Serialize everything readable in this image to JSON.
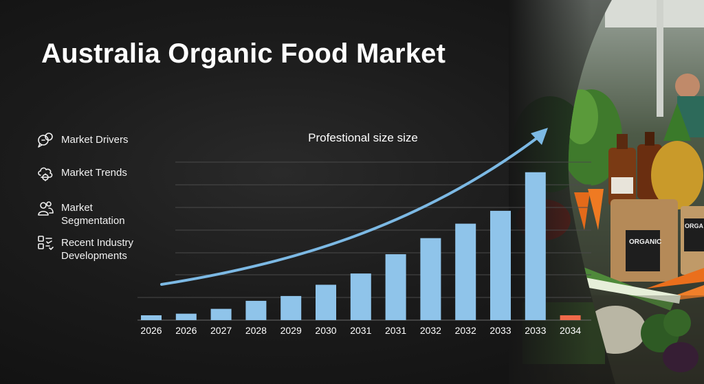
{
  "title": "Australia Organic Food Market",
  "menu": {
    "items": [
      {
        "label": "Market Drivers",
        "icon": "chat-bubbles-icon"
      },
      {
        "label": "Market Trends",
        "icon": "gear-cloud-icon"
      },
      {
        "label": "Market Segmentation",
        "icon": "people-icon"
      },
      {
        "label": "Recent Industry Developments",
        "icon": "checklist-icon"
      }
    ]
  },
  "chart_data": {
    "type": "bar",
    "title": "Profestional size size",
    "xlabel": "",
    "ylabel": "",
    "categories": [
      "2026",
      "2026",
      "2027",
      "2028",
      "2029",
      "2030",
      "2031",
      "2031",
      "2032",
      "2032",
      "2033",
      "2033",
      "2034"
    ],
    "values": [
      3,
      4,
      7,
      12,
      15,
      22,
      29,
      41,
      51,
      60,
      68,
      92,
      3
    ],
    "ylim": [
      0,
      100
    ],
    "grid": true,
    "bar_color": "#8fc4ea",
    "highlight_color": "#f06a4a",
    "trend_color": "#7cb9e4"
  }
}
